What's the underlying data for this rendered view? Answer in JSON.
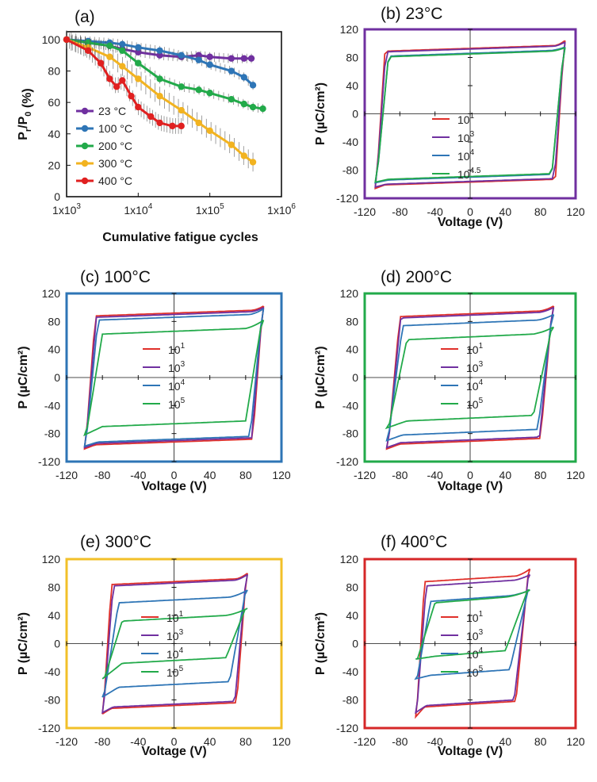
{
  "chart_data": [
    {
      "type": "scatter",
      "panel": "a",
      "title": "(a)",
      "xlabel": "Cumulative fatigue cycles",
      "ylabel_main": "P",
      "ylabel_sub1": "r",
      "ylabel_mid": "/P",
      "ylabel_sub2": "0",
      "ylabel_tail": " (%)",
      "x_scale": "log",
      "xlim": [
        1000,
        1000000
      ],
      "ylim": [
        0,
        105
      ],
      "x_ticks": [
        1000,
        10000,
        100000,
        1000000
      ],
      "x_tick_labels": [
        {
          "base": "1x10",
          "exp": "3"
        },
        {
          "base": "1x10",
          "exp": "4"
        },
        {
          "base": "1x10",
          "exp": "5"
        },
        {
          "base": "1x10",
          "exp": "6"
        }
      ],
      "y_ticks": [
        0,
        20,
        40,
        60,
        80,
        100
      ],
      "legend_position": "bottom-left",
      "series": [
        {
          "name": "23 °C",
          "color": "#7030A0",
          "x": [
            1000,
            2000,
            4000,
            6000,
            10000,
            20000,
            40000,
            70000,
            100000,
            200000,
            300000,
            380000
          ],
          "y": [
            100,
            98,
            96,
            94,
            92,
            90,
            89,
            90,
            89,
            88,
            88,
            88
          ]
        },
        {
          "name": "100 °C",
          "color": "#2E75B6",
          "x": [
            1000,
            2000,
            4000,
            6000,
            10000,
            20000,
            40000,
            70000,
            100000,
            200000,
            300000,
            400000
          ],
          "y": [
            100,
            99,
            98,
            97,
            95,
            93,
            90,
            87,
            84,
            80,
            76,
            71
          ]
        },
        {
          "name": "200 °C",
          "color": "#22AA4A",
          "x": [
            1000,
            2000,
            4000,
            6000,
            10000,
            20000,
            40000,
            70000,
            100000,
            200000,
            300000,
            400000,
            550000
          ],
          "y": [
            100,
            98,
            96,
            93,
            85,
            75,
            70,
            68,
            66,
            62,
            59,
            57,
            56
          ]
        },
        {
          "name": "300 °C",
          "color": "#F2B320",
          "x": [
            1000,
            2000,
            4000,
            6000,
            10000,
            20000,
            40000,
            70000,
            100000,
            200000,
            300000,
            400000
          ],
          "y": [
            100,
            95,
            89,
            83,
            75,
            64,
            55,
            47,
            42,
            33,
            26,
            22
          ]
        },
        {
          "name": "400 °C",
          "color": "#E02020",
          "x": [
            1000,
            2000,
            3000,
            4000,
            5000,
            6000,
            8000,
            10000,
            15000,
            20000,
            30000,
            40000
          ],
          "y": [
            100,
            93,
            85,
            75,
            70,
            74,
            64,
            57,
            51,
            47,
            45,
            45
          ]
        }
      ]
    },
    {
      "type": "line",
      "panel": "b",
      "title": "(b) 23°C",
      "frame_color": "#7030A0",
      "xlabel": "Voltage (V)",
      "ylabel": "P (µC/cm²)",
      "xlim": [
        -120,
        120
      ],
      "ylim": [
        -120,
        120
      ],
      "x_ticks": [
        -120,
        -80,
        -40,
        0,
        40,
        80,
        120
      ],
      "y_ticks": [
        -120,
        -80,
        -40,
        0,
        40,
        80,
        120
      ],
      "legend_position": "center",
      "series": [
        {
          "name_base": "10",
          "name_exp": "1",
          "color": "#E0302A",
          "vmin": -108,
          "vmax": 108,
          "pmax": 104,
          "pr": 97,
          "vc": 97,
          "pnmin": -106,
          "prn": -101
        },
        {
          "name_base": "10",
          "name_exp": "3",
          "color": "#7030A0",
          "vmin": -108,
          "vmax": 108,
          "pmax": 102,
          "pr": 96,
          "vc": 96,
          "pnmin": -104,
          "prn": -100
        },
        {
          "name_base": "10",
          "name_exp": "4",
          "color": "#2E75B6",
          "vmin": -108,
          "vmax": 108,
          "pmax": 95,
          "pr": 90,
          "vc": 93,
          "pnmin": -98,
          "prn": -94
        },
        {
          "name_base": "10",
          "name_exp": "4.5",
          "color": "#22AA4A",
          "vmin": -108,
          "vmax": 108,
          "pmax": 94,
          "pr": 89,
          "vc": 93,
          "pnmin": -97,
          "prn": -93
        }
      ]
    },
    {
      "type": "line",
      "panel": "c",
      "title": "(c) 100°C",
      "frame_color": "#2E75B6",
      "xlabel": "Voltage (V)",
      "ylabel": "P (µC/cm²)",
      "xlim": [
        -120,
        120
      ],
      "ylim": [
        -120,
        120
      ],
      "x_ticks": [
        -120,
        -80,
        -40,
        0,
        40,
        80,
        120
      ],
      "y_ticks": [
        -120,
        -80,
        -40,
        0,
        40,
        80,
        120
      ],
      "legend_position": "center",
      "series": [
        {
          "name_base": "10",
          "name_exp": "1",
          "color": "#E0302A",
          "vmin": -100,
          "vmax": 100,
          "pmax": 102,
          "pr": 96,
          "vc": 88,
          "pnmin": -102,
          "prn": -96
        },
        {
          "name_base": "10",
          "name_exp": "3",
          "color": "#7030A0",
          "vmin": -100,
          "vmax": 100,
          "pmax": 100,
          "pr": 94,
          "vc": 87,
          "pnmin": -100,
          "prn": -94
        },
        {
          "name_base": "10",
          "name_exp": "4",
          "color": "#2E75B6",
          "vmin": -100,
          "vmax": 100,
          "pmax": 98,
          "pr": 90,
          "vc": 85,
          "pnmin": -98,
          "prn": -92
        },
        {
          "name_base": "10",
          "name_exp": "5",
          "color": "#22AA4A",
          "vmin": -100,
          "vmax": 100,
          "pmax": 82,
          "pr": 70,
          "vc": 80,
          "pnmin": -82,
          "prn": -70
        }
      ]
    },
    {
      "type": "line",
      "panel": "d",
      "title": "(d) 200°C",
      "frame_color": "#22AA4A",
      "xlabel": "Voltage (V)",
      "ylabel": "P (µC/cm²)",
      "xlim": [
        -120,
        120
      ],
      "ylim": [
        -120,
        120
      ],
      "x_ticks": [
        -120,
        -80,
        -40,
        0,
        40,
        80,
        120
      ],
      "y_ticks": [
        -120,
        -80,
        -40,
        0,
        40,
        80,
        120
      ],
      "legend_position": "center",
      "series": [
        {
          "name_base": "10",
          "name_exp": "1",
          "color": "#E0302A",
          "vmin": -95,
          "vmax": 95,
          "pmax": 102,
          "pr": 95,
          "vc": 80,
          "pnmin": -102,
          "prn": -95
        },
        {
          "name_base": "10",
          "name_exp": "3",
          "color": "#7030A0",
          "vmin": -95,
          "vmax": 95,
          "pmax": 100,
          "pr": 93,
          "vc": 79,
          "pnmin": -100,
          "prn": -93
        },
        {
          "name_base": "10",
          "name_exp": "4",
          "color": "#2E75B6",
          "vmin": -95,
          "vmax": 95,
          "pmax": 90,
          "pr": 82,
          "vc": 77,
          "pnmin": -90,
          "prn": -82
        },
        {
          "name_base": "10",
          "name_exp": "5",
          "color": "#22AA4A",
          "vmin": -95,
          "vmax": 95,
          "pmax": 72,
          "pr": 62,
          "vc": 72,
          "pnmin": -72,
          "prn": -62
        }
      ]
    },
    {
      "type": "line",
      "panel": "e",
      "title": "(e) 300°C",
      "frame_color": "#F2C029",
      "xlabel": "Voltage (V)",
      "ylabel": "P (µC/cm²)",
      "xlim": [
        -120,
        120
      ],
      "ylim": [
        -120,
        120
      ],
      "x_ticks": [
        -120,
        -80,
        -40,
        0,
        40,
        80,
        120
      ],
      "y_ticks": [
        -120,
        -80,
        -40,
        0,
        40,
        80,
        120
      ],
      "legend_position": "center",
      "series": [
        {
          "name_base": "10",
          "name_exp": "1",
          "color": "#E0302A",
          "vmin": -80,
          "vmax": 82,
          "pmax": 100,
          "pr": 92,
          "vc": 70,
          "pnmin": -100,
          "prn": -92
        },
        {
          "name_base": "10",
          "name_exp": "3",
          "color": "#7030A0",
          "vmin": -80,
          "vmax": 82,
          "pmax": 98,
          "pr": 90,
          "vc": 68,
          "pnmin": -98,
          "prn": -90
        },
        {
          "name_base": "10",
          "name_exp": "4",
          "color": "#2E75B6",
          "vmin": -80,
          "vmax": 82,
          "pmax": 76,
          "pr": 66,
          "vc": 62,
          "pnmin": -76,
          "prn": -62
        },
        {
          "name_base": "10",
          "name_exp": "5",
          "color": "#22AA4A",
          "vmin": -80,
          "vmax": 82,
          "pmax": 50,
          "pr": 40,
          "vc": 58,
          "pnmin": -50,
          "prn": -28
        }
      ]
    },
    {
      "type": "line",
      "panel": "f",
      "title": "(f) 400°C",
      "frame_color": "#D62728",
      "xlabel": "Voltage (V)",
      "ylabel": "P (µC/cm²)",
      "xlim": [
        -120,
        120
      ],
      "ylim": [
        -120,
        120
      ],
      "x_ticks": [
        -120,
        -80,
        -40,
        0,
        40,
        80,
        120
      ],
      "y_ticks": [
        -120,
        -80,
        -40,
        0,
        40,
        80,
        120
      ],
      "legend_position": "center",
      "series": [
        {
          "name_base": "10",
          "name_exp": "1",
          "color": "#E0302A",
          "vmin": -62,
          "vmax": 68,
          "pmax": 106,
          "pr": 96,
          "vc": 52,
          "pnmin": -104,
          "prn": -90
        },
        {
          "name_base": "10",
          "name_exp": "3",
          "color": "#7030A0",
          "vmin": -62,
          "vmax": 68,
          "pmax": 98,
          "pr": 90,
          "vc": 50,
          "pnmin": -98,
          "prn": -88
        },
        {
          "name_base": "10",
          "name_exp": "4",
          "color": "#2E75B6",
          "vmin": -62,
          "vmax": 68,
          "pmax": 76,
          "pr": 68,
          "vc": 45,
          "pnmin": -50,
          "prn": -45
        },
        {
          "name_base": "10",
          "name_exp": "5",
          "color": "#22AA4A",
          "vmin": -62,
          "vmax": 68,
          "pmax": 76,
          "pr": 66,
          "vc": 40,
          "pnmin": -22,
          "prn": -18
        }
      ]
    }
  ]
}
